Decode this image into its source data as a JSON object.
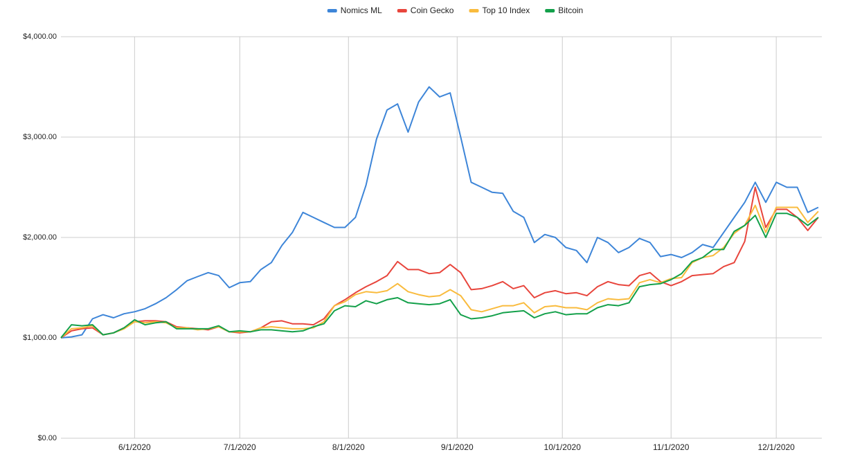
{
  "chart_data": {
    "type": "line",
    "x": [
      "5/11/2020",
      "5/14/2020",
      "5/17/2020",
      "5/20/2020",
      "5/23/2020",
      "5/26/2020",
      "5/29/2020",
      "6/1/2020",
      "6/4/2020",
      "6/7/2020",
      "6/10/2020",
      "6/13/2020",
      "6/16/2020",
      "6/19/2020",
      "6/22/2020",
      "6/25/2020",
      "6/28/2020",
      "7/1/2020",
      "7/4/2020",
      "7/7/2020",
      "7/10/2020",
      "7/13/2020",
      "7/16/2020",
      "7/19/2020",
      "7/22/2020",
      "7/25/2020",
      "7/28/2020",
      "7/31/2020",
      "8/3/2020",
      "8/6/2020",
      "8/9/2020",
      "8/12/2020",
      "8/15/2020",
      "8/18/2020",
      "8/21/2020",
      "8/24/2020",
      "8/27/2020",
      "8/30/2020",
      "9/2/2020",
      "9/5/2020",
      "9/8/2020",
      "9/11/2020",
      "9/14/2020",
      "9/17/2020",
      "9/20/2020",
      "9/23/2020",
      "9/26/2020",
      "9/29/2020",
      "10/2/2020",
      "10/5/2020",
      "10/8/2020",
      "10/11/2020",
      "10/14/2020",
      "10/17/2020",
      "10/20/2020",
      "10/23/2020",
      "10/26/2020",
      "10/29/2020",
      "11/1/2020",
      "11/4/2020",
      "11/7/2020",
      "11/10/2020",
      "11/13/2020",
      "11/16/2020",
      "11/19/2020",
      "11/22/2020",
      "11/25/2020",
      "11/28/2020",
      "12/1/2020",
      "12/4/2020",
      "12/7/2020",
      "12/10/2020",
      "12/13/2020"
    ],
    "series": [
      {
        "name": "Nomics ML",
        "color": "#3d85d8",
        "values": [
          1000,
          1010,
          1030,
          1190,
          1230,
          1200,
          1240,
          1260,
          1290,
          1340,
          1400,
          1480,
          1570,
          1610,
          1650,
          1620,
          1500,
          1550,
          1560,
          1680,
          1750,
          1920,
          2050,
          2250,
          2200,
          2150,
          2100,
          2100,
          2200,
          2520,
          2980,
          3270,
          3330,
          3050,
          3350,
          3500,
          3400,
          3440,
          3000,
          2550,
          2500,
          2450,
          2440,
          2260,
          2200,
          1950,
          2030,
          2000,
          1900,
          1870,
          1750,
          2000,
          1950,
          1850,
          1900,
          1990,
          1950,
          1810,
          1830,
          1800,
          1850,
          1930,
          1900,
          2050,
          2200,
          2350,
          2550,
          2350,
          2550,
          2500,
          2500,
          2250,
          2300
        ]
      },
      {
        "name": "Coin Gecko",
        "color": "#e8453c",
        "values": [
          1000,
          1070,
          1090,
          1100,
          1030,
          1050,
          1100,
          1160,
          1170,
          1170,
          1160,
          1110,
          1100,
          1090,
          1080,
          1110,
          1060,
          1050,
          1060,
          1100,
          1160,
          1170,
          1140,
          1140,
          1130,
          1190,
          1320,
          1380,
          1450,
          1510,
          1560,
          1620,
          1760,
          1680,
          1680,
          1640,
          1650,
          1730,
          1650,
          1480,
          1490,
          1520,
          1560,
          1490,
          1520,
          1400,
          1450,
          1470,
          1440,
          1450,
          1420,
          1510,
          1560,
          1530,
          1520,
          1620,
          1650,
          1560,
          1520,
          1560,
          1620,
          1630,
          1640,
          1710,
          1750,
          1960,
          2500,
          2100,
          2280,
          2280,
          2200,
          2070,
          2200
        ]
      },
      {
        "name": "Top 10 Index",
        "color": "#f9bb3d",
        "values": [
          1000,
          1090,
          1100,
          1120,
          1030,
          1050,
          1090,
          1160,
          1150,
          1160,
          1150,
          1100,
          1100,
          1080,
          1090,
          1110,
          1060,
          1060,
          1060,
          1100,
          1110,
          1100,
          1090,
          1090,
          1100,
          1160,
          1320,
          1360,
          1430,
          1460,
          1450,
          1470,
          1540,
          1460,
          1430,
          1410,
          1420,
          1480,
          1420,
          1280,
          1260,
          1290,
          1320,
          1320,
          1350,
          1250,
          1310,
          1320,
          1300,
          1300,
          1280,
          1350,
          1390,
          1380,
          1390,
          1550,
          1580,
          1550,
          1590,
          1600,
          1750,
          1800,
          1820,
          1900,
          2040,
          2120,
          2320,
          2050,
          2300,
          2300,
          2300,
          2150,
          2260
        ]
      },
      {
        "name": "Bitcoin",
        "color": "#13a04a",
        "values": [
          1000,
          1130,
          1120,
          1130,
          1030,
          1050,
          1100,
          1180,
          1130,
          1150,
          1160,
          1090,
          1090,
          1090,
          1090,
          1120,
          1060,
          1070,
          1060,
          1080,
          1080,
          1070,
          1060,
          1070,
          1110,
          1140,
          1270,
          1320,
          1310,
          1370,
          1340,
          1380,
          1400,
          1350,
          1340,
          1330,
          1340,
          1380,
          1230,
          1190,
          1200,
          1220,
          1250,
          1260,
          1270,
          1200,
          1240,
          1260,
          1230,
          1240,
          1240,
          1300,
          1330,
          1320,
          1350,
          1510,
          1530,
          1540,
          1580,
          1640,
          1760,
          1800,
          1880,
          1880,
          2060,
          2120,
          2220,
          2000,
          2240,
          2240,
          2200,
          2120,
          2200
        ]
      }
    ],
    "xlim": [
      "5/11/2020",
      "12/14/2020"
    ],
    "xticks": [
      "6/1/2020",
      "7/1/2020",
      "8/1/2020",
      "9/1/2020",
      "10/1/2020",
      "11/1/2020",
      "12/1/2020"
    ],
    "ylim": [
      0,
      4000
    ],
    "yticks": [
      {
        "value": 0,
        "label": "$0.00"
      },
      {
        "value": 1000,
        "label": "$1,000.00"
      },
      {
        "value": 2000,
        "label": "$2,000.00"
      },
      {
        "value": 3000,
        "label": "$3,000.00"
      },
      {
        "value": 4000,
        "label": "$4,000.00"
      }
    ],
    "grid": true,
    "legend": "top"
  }
}
